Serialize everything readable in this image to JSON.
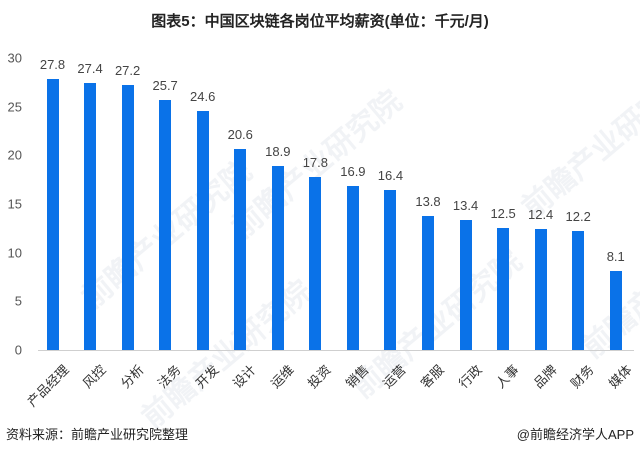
{
  "header": {
    "title": "图表5：中国区块链各岗位平均薪资(单位：千元/月)"
  },
  "footer": {
    "source": "资料来源：前瞻产业研究院整理",
    "credit": "@前瞻经济学人APP"
  },
  "watermark": {
    "text": "前瞻产业研究院"
  },
  "colors": {
    "bar": "#0a72e8",
    "axis": "#cfcfcf"
  },
  "chart_data": {
    "type": "bar",
    "title": "图表5：中国区块链各岗位平均薪资(单位：千元/月)",
    "xlabel": "",
    "ylabel": "",
    "ylim": [
      0,
      30
    ],
    "yticks": [
      0,
      5,
      10,
      15,
      20,
      25,
      30
    ],
    "grid": false,
    "legend": null,
    "categories": [
      "产品经理",
      "风控",
      "分析",
      "法务",
      "开发",
      "设计",
      "运维",
      "投资",
      "销售",
      "运营",
      "客服",
      "行政",
      "人事",
      "品牌",
      "财务",
      "媒体"
    ],
    "values": [
      27.8,
      27.4,
      27.2,
      25.7,
      24.6,
      20.6,
      18.9,
      17.8,
      16.9,
      16.4,
      13.8,
      13.4,
      12.5,
      12.4,
      12.2,
      8.1
    ],
    "value_labels": [
      "27.8",
      "27.4",
      "27.2",
      "25.7",
      "24.6",
      "20.6",
      "18.9",
      "17.8",
      "16.9",
      "16.4",
      "13.8",
      "13.4",
      "12.5",
      "12.4",
      "12.2",
      "8.1"
    ]
  }
}
